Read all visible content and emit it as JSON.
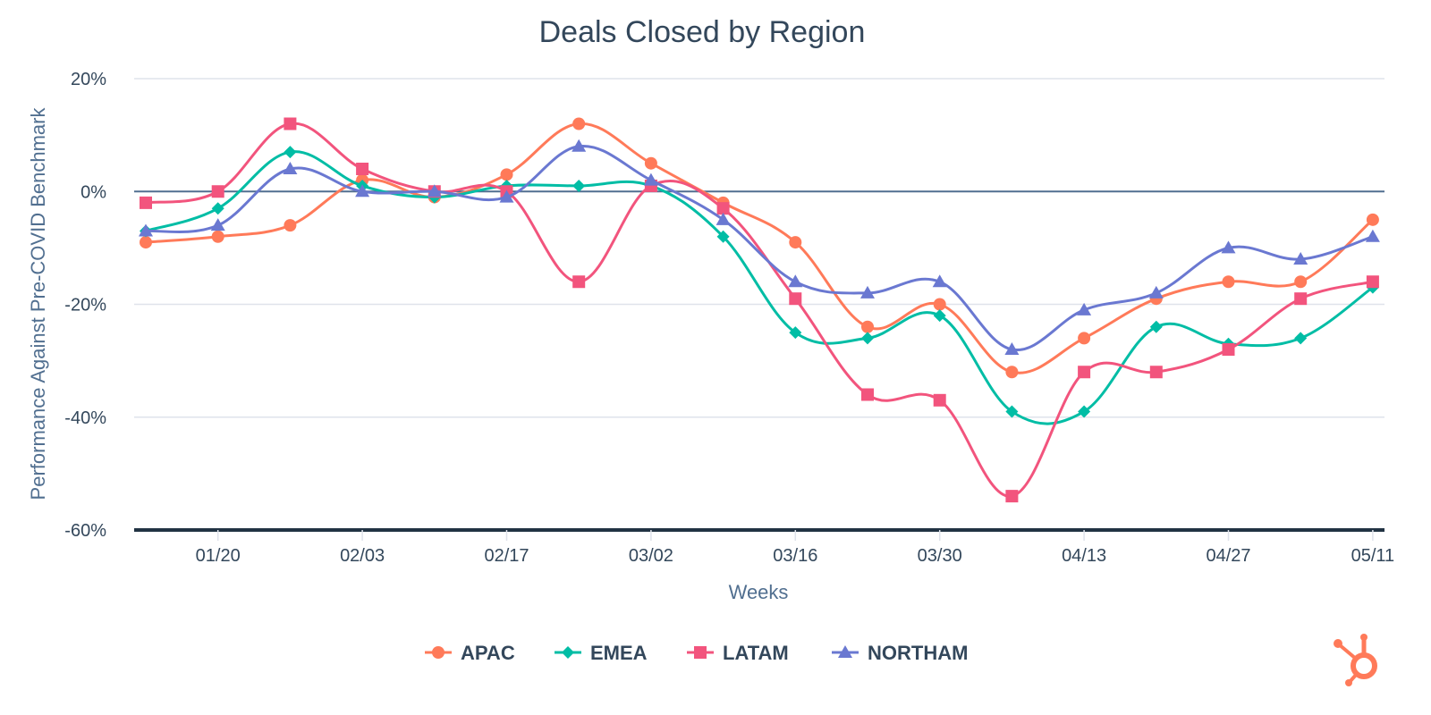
{
  "chart_data": {
    "type": "line",
    "title": "Deals Closed by Region",
    "xlabel": "Weeks",
    "ylabel": "Performance Against Pre-COVID Benchmark",
    "ylim": [
      -60,
      20
    ],
    "y_ticks": [
      "20%",
      "0%",
      "-20%",
      "-40%",
      "-60%"
    ],
    "y_tick_values": [
      20,
      0,
      -20,
      -40,
      -60
    ],
    "x_ticks": [
      "01/20",
      "02/03",
      "02/17",
      "03/02",
      "03/16",
      "03/30",
      "04/13",
      "04/27",
      "05/11"
    ],
    "x": [
      "01/13",
      "01/20",
      "01/27",
      "02/03",
      "02/10",
      "02/17",
      "02/24",
      "03/02",
      "03/09",
      "03/16",
      "03/23",
      "03/30",
      "04/06",
      "04/13",
      "04/20",
      "04/27",
      "05/04",
      "05/11"
    ],
    "grid": true,
    "smooth": true,
    "legend_position": "bottom-center",
    "series": [
      {
        "name": "APAC",
        "color": "#ff7a59",
        "marker": "circle",
        "values": [
          -9,
          -8,
          -6,
          2,
          -1,
          3,
          12,
          5,
          -2,
          -9,
          -24,
          -20,
          -32,
          -26,
          -19,
          -16,
          -16,
          -5
        ]
      },
      {
        "name": "EMEA",
        "color": "#00bda5",
        "marker": "diamond",
        "values": [
          -7,
          -3,
          7,
          1,
          -1,
          1,
          1,
          1,
          -8,
          -25,
          -26,
          -22,
          -39,
          -39,
          -24,
          -27,
          -26,
          -17
        ]
      },
      {
        "name": "LATAM",
        "color": "#f2547d",
        "marker": "square",
        "values": [
          -2,
          0,
          12,
          4,
          0,
          0,
          -16,
          1,
          -3,
          -19,
          -36,
          -37,
          -54,
          -32,
          -32,
          -28,
          -19,
          -16
        ]
      },
      {
        "name": "NORTHAM",
        "color": "#6a78d1",
        "marker": "triangle",
        "values": [
          -7,
          -6,
          4,
          0,
          0,
          -1,
          8,
          2,
          -5,
          -16,
          -18,
          -16,
          -28,
          -21,
          -18,
          -10,
          -12,
          -8
        ]
      }
    ]
  },
  "branding": {
    "logo_icon": "hubspot-sprocket-icon",
    "logo_color": "#ff7a59"
  },
  "colors": {
    "axis": "#213343",
    "zero_line": "#516f90",
    "grid": "#dfe3eb"
  }
}
